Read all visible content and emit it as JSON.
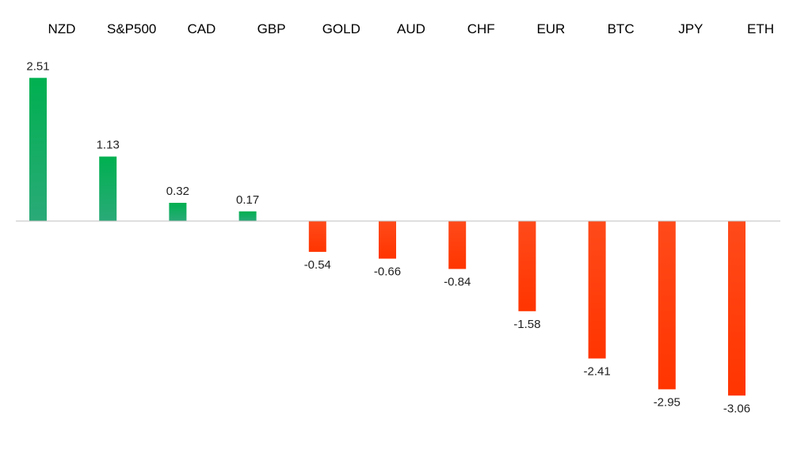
{
  "chart_data": {
    "type": "bar",
    "categories": [
      "NZD",
      "S&P500",
      "CAD",
      "GBP",
      "GOLD",
      "AUD",
      "CHF",
      "EUR",
      "BTC",
      "JPY",
      "ETH"
    ],
    "values": [
      2.51,
      1.13,
      0.32,
      0.17,
      -0.54,
      -0.66,
      -0.84,
      -1.58,
      -2.41,
      -2.95,
      -3.06
    ],
    "data_labels": [
      "2.51",
      "1.13",
      "0.32",
      "0.17",
      "-0.54",
      "-0.66",
      "-0.84",
      "-1.58",
      "-2.41",
      "-2.95",
      "-3.06"
    ],
    "title": "",
    "xlabel": "",
    "ylabel": "",
    "ylim": [
      -3.5,
      2.6
    ],
    "category_labels_position": "top",
    "grid": false,
    "legend": "none",
    "colors": {
      "positive_top": "#00b050",
      "positive_bottom": "#2aaa78",
      "negative_top": "#ff4a1a",
      "negative_bottom": "#ff3500",
      "baseline": "#bfbfbf"
    }
  }
}
